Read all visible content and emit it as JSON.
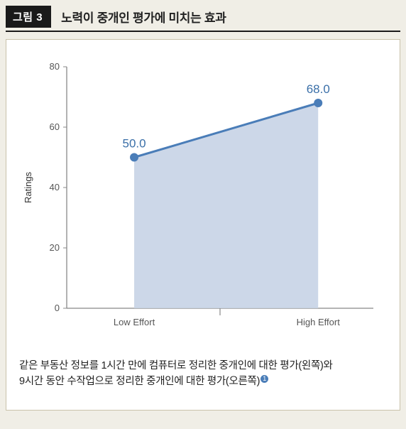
{
  "header": {
    "badge": "그림 3",
    "title": "노력이 중개인 평가에 미치는 효과"
  },
  "chart": {
    "type": "line-area",
    "y_axis": {
      "label": "Ratings",
      "min": 0,
      "max": 80,
      "ticks": [
        0,
        20,
        40,
        60,
        80
      ],
      "label_fontsize": 13,
      "tick_fontsize": 13,
      "tick_color": "#555"
    },
    "x_axis": {
      "categories": [
        "Low Effort",
        "High Effort"
      ],
      "tick_fontsize": 13,
      "tick_color": "#555"
    },
    "series": {
      "values": [
        50.0,
        68.0
      ],
      "value_labels": [
        "50.0",
        "68.0"
      ],
      "label_color": "#3a6fa8",
      "label_fontsize": 17,
      "line_color": "#4a7db8",
      "line_width": 3,
      "marker_color": "#4a7db8",
      "marker_radius": 6,
      "fill_color": "#c7d3e5",
      "fill_opacity": 0.9
    },
    "grid": {
      "axis_color": "#888",
      "baseline_tick_height": 10
    },
    "background": "#ffffff"
  },
  "caption": {
    "line1": "같은 부동산 정보를 1시간 만에 컴퓨터로 정리한 중개인에 대한 평가(왼쪽)와",
    "line2": "9시간 동안 수작업으로 정리한 중개인에 대한 평가(오른쪽)",
    "footnote_mark": "1"
  }
}
